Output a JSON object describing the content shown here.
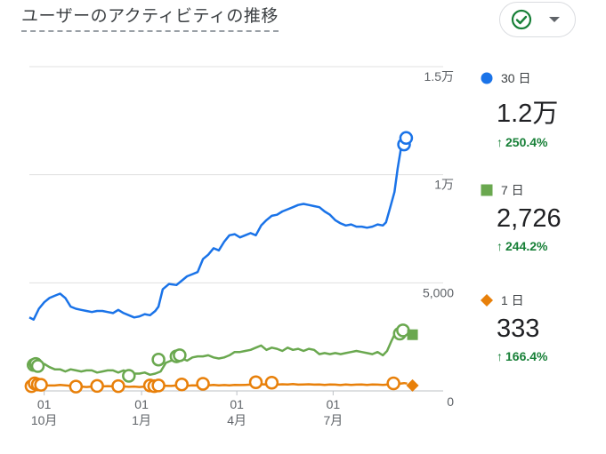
{
  "title": "ユーザーのアクティビティの推移",
  "status_icon": "check-circle-icon",
  "dropdown_icon": "caret-down-icon",
  "colors": {
    "day30": "#1a73e8",
    "day7": "#6aa84f",
    "day1": "#e8800a",
    "up": "#188038"
  },
  "legend": [
    {
      "marker": "circle",
      "label": "30 日",
      "value": "1.2万",
      "delta": "250.4%",
      "trend": "up"
    },
    {
      "marker": "square",
      "label": "7 日",
      "value": "2,726",
      "delta": "244.2%",
      "trend": "up"
    },
    {
      "marker": "diamond",
      "label": "1 日",
      "value": "333",
      "delta": "166.4%",
      "trend": "up"
    }
  ],
  "chart_data": {
    "type": "line",
    "y_ticks": [
      {
        "value": 15000,
        "label": "1.5万"
      },
      {
        "value": 10000,
        "label": "1万"
      },
      {
        "value": 5000,
        "label": "5,000"
      },
      {
        "value": 0,
        "label": "0"
      }
    ],
    "ylim": [
      0,
      15000
    ],
    "x_ticks": [
      {
        "day": 0,
        "top": "01",
        "bottom": "10月"
      },
      {
        "day": 92,
        "top": "01",
        "bottom": "1月"
      },
      {
        "day": 182,
        "top": "01",
        "bottom": "4月"
      },
      {
        "day": 273,
        "top": "01",
        "bottom": "7月"
      }
    ],
    "xlim": [
      -14,
      345
    ],
    "grid": true,
    "legend_position": "right",
    "series": [
      {
        "name": "30 日",
        "points": [
          [
            -14,
            3400
          ],
          [
            -10,
            3300
          ],
          [
            -5,
            3800
          ],
          [
            0,
            4100
          ],
          [
            5,
            4300
          ],
          [
            10,
            4400
          ],
          [
            15,
            4500
          ],
          [
            20,
            4300
          ],
          [
            25,
            3900
          ],
          [
            30,
            3800
          ],
          [
            35,
            3750
          ],
          [
            40,
            3700
          ],
          [
            45,
            3650
          ],
          [
            50,
            3700
          ],
          [
            55,
            3700
          ],
          [
            60,
            3650
          ],
          [
            65,
            3600
          ],
          [
            70,
            3750
          ],
          [
            75,
            3600
          ],
          [
            80,
            3500
          ],
          [
            85,
            3400
          ],
          [
            90,
            3450
          ],
          [
            95,
            3550
          ],
          [
            100,
            3500
          ],
          [
            105,
            3700
          ],
          [
            108,
            3900
          ],
          [
            112,
            4700
          ],
          [
            118,
            4950
          ],
          [
            125,
            4900
          ],
          [
            130,
            5100
          ],
          [
            135,
            5300
          ],
          [
            140,
            5400
          ],
          [
            145,
            5500
          ],
          [
            150,
            6100
          ],
          [
            155,
            6300
          ],
          [
            160,
            6600
          ],
          [
            165,
            6500
          ],
          [
            170,
            6900
          ],
          [
            175,
            7200
          ],
          [
            180,
            7250
          ],
          [
            185,
            7100
          ],
          [
            190,
            7200
          ],
          [
            195,
            7300
          ],
          [
            200,
            7200
          ],
          [
            205,
            7650
          ],
          [
            210,
            7900
          ],
          [
            215,
            8100
          ],
          [
            220,
            8150
          ],
          [
            225,
            8300
          ],
          [
            230,
            8400
          ],
          [
            235,
            8500
          ],
          [
            240,
            8600
          ],
          [
            245,
            8650
          ],
          [
            250,
            8600
          ],
          [
            255,
            8550
          ],
          [
            260,
            8500
          ],
          [
            265,
            8300
          ],
          [
            270,
            8150
          ],
          [
            275,
            7900
          ],
          [
            280,
            7750
          ],
          [
            285,
            7650
          ],
          [
            290,
            7700
          ],
          [
            295,
            7600
          ],
          [
            300,
            7600
          ],
          [
            305,
            7550
          ],
          [
            310,
            7600
          ],
          [
            315,
            7700
          ],
          [
            320,
            7650
          ],
          [
            323,
            7800
          ],
          [
            327,
            8500
          ],
          [
            331,
            9200
          ],
          [
            334,
            10300
          ],
          [
            337,
            11200
          ],
          [
            340,
            11500
          ],
          [
            343,
            11700
          ]
        ]
      },
      {
        "name": "7 日",
        "points": [
          [
            -14,
            1050
          ],
          [
            -10,
            1050
          ],
          [
            -5,
            1150
          ],
          [
            0,
            1250
          ],
          [
            5,
            1100
          ],
          [
            10,
            1000
          ],
          [
            15,
            1000
          ],
          [
            20,
            900
          ],
          [
            25,
            1000
          ],
          [
            30,
            950
          ],
          [
            35,
            900
          ],
          [
            40,
            950
          ],
          [
            45,
            950
          ],
          [
            50,
            850
          ],
          [
            55,
            900
          ],
          [
            60,
            950
          ],
          [
            65,
            950
          ],
          [
            70,
            850
          ],
          [
            75,
            950
          ],
          [
            80,
            850
          ],
          [
            85,
            800
          ],
          [
            90,
            800
          ],
          [
            95,
            850
          ],
          [
            100,
            750
          ],
          [
            105,
            800
          ],
          [
            110,
            900
          ],
          [
            115,
            1300
          ],
          [
            120,
            1400
          ],
          [
            125,
            1400
          ],
          [
            130,
            1500
          ],
          [
            135,
            1400
          ],
          [
            140,
            1550
          ],
          [
            145,
            1600
          ],
          [
            150,
            1600
          ],
          [
            155,
            1650
          ],
          [
            160,
            1550
          ],
          [
            165,
            1500
          ],
          [
            170,
            1550
          ],
          [
            175,
            1650
          ],
          [
            180,
            1800
          ],
          [
            185,
            1800
          ],
          [
            190,
            1850
          ],
          [
            195,
            1900
          ],
          [
            200,
            2000
          ],
          [
            205,
            2100
          ],
          [
            210,
            1900
          ],
          [
            215,
            2000
          ],
          [
            220,
            1950
          ],
          [
            225,
            1850
          ],
          [
            230,
            2000
          ],
          [
            235,
            1900
          ],
          [
            240,
            1950
          ],
          [
            245,
            1850
          ],
          [
            250,
            1950
          ],
          [
            255,
            1900
          ],
          [
            260,
            1700
          ],
          [
            265,
            1750
          ],
          [
            270,
            1700
          ],
          [
            275,
            1750
          ],
          [
            280,
            1700
          ],
          [
            285,
            1750
          ],
          [
            290,
            1800
          ],
          [
            295,
            1850
          ],
          [
            300,
            1800
          ],
          [
            305,
            1750
          ],
          [
            310,
            1700
          ],
          [
            315,
            1800
          ],
          [
            320,
            1650
          ],
          [
            324,
            1850
          ],
          [
            328,
            2300
          ],
          [
            332,
            2700
          ],
          [
            336,
            2700
          ],
          [
            340,
            2800
          ],
          [
            343,
            2750
          ]
        ]
      },
      {
        "name": "1 日",
        "points": [
          [
            -14,
            200
          ],
          [
            -10,
            250
          ],
          [
            -5,
            300
          ],
          [
            0,
            250
          ],
          [
            5,
            250
          ],
          [
            10,
            250
          ],
          [
            15,
            280
          ],
          [
            20,
            260
          ],
          [
            25,
            240
          ],
          [
            30,
            220
          ],
          [
            35,
            200
          ],
          [
            40,
            180
          ],
          [
            45,
            200
          ],
          [
            50,
            220
          ],
          [
            55,
            210
          ],
          [
            60,
            220
          ],
          [
            65,
            210
          ],
          [
            70,
            200
          ],
          [
            75,
            210
          ],
          [
            80,
            190
          ],
          [
            85,
            200
          ],
          [
            90,
            180
          ],
          [
            95,
            200
          ],
          [
            100,
            210
          ],
          [
            105,
            220
          ],
          [
            110,
            250
          ],
          [
            115,
            240
          ],
          [
            120,
            230
          ],
          [
            125,
            250
          ],
          [
            130,
            230
          ],
          [
            135,
            240
          ],
          [
            140,
            260
          ],
          [
            145,
            250
          ],
          [
            150,
            270
          ],
          [
            155,
            260
          ],
          [
            160,
            280
          ],
          [
            165,
            260
          ],
          [
            170,
            270
          ],
          [
            175,
            260
          ],
          [
            180,
            280
          ],
          [
            185,
            270
          ],
          [
            190,
            280
          ],
          [
            195,
            290
          ],
          [
            200,
            300
          ],
          [
            205,
            310
          ],
          [
            210,
            300
          ],
          [
            215,
            320
          ],
          [
            220,
            290
          ],
          [
            225,
            310
          ],
          [
            230,
            300
          ],
          [
            235,
            320
          ],
          [
            240,
            290
          ],
          [
            245,
            300
          ],
          [
            250,
            310
          ],
          [
            255,
            290
          ],
          [
            260,
            300
          ],
          [
            265,
            280
          ],
          [
            270,
            300
          ],
          [
            275,
            290
          ],
          [
            280,
            270
          ],
          [
            285,
            300
          ],
          [
            290,
            280
          ],
          [
            295,
            290
          ],
          [
            300,
            300
          ],
          [
            305,
            280
          ],
          [
            310,
            300
          ],
          [
            315,
            290
          ],
          [
            320,
            280
          ],
          [
            325,
            300
          ],
          [
            330,
            320
          ],
          [
            335,
            330
          ],
          [
            340,
            360
          ],
          [
            343,
            340
          ]
        ]
      }
    ],
    "markers": {
      "30 日": [
        [
          340,
          11400
        ],
        [
          342,
          11700
        ]
      ],
      "7 日": [
        [
          -10,
          1200
        ],
        [
          -8,
          1250
        ],
        [
          -6,
          1150
        ],
        [
          80,
          700
        ],
        [
          108,
          1450
        ],
        [
          125,
          1600
        ],
        [
          128,
          1650
        ],
        [
          336,
          2650
        ],
        [
          339,
          2800
        ]
      ],
      "1 日": [
        [
          -12,
          220
        ],
        [
          -9,
          350
        ],
        [
          -6,
          300
        ],
        [
          -3,
          280
        ],
        [
          30,
          200
        ],
        [
          50,
          230
        ],
        [
          70,
          220
        ],
        [
          100,
          250
        ],
        [
          104,
          220
        ],
        [
          108,
          250
        ],
        [
          130,
          300
        ],
        [
          150,
          330
        ],
        [
          200,
          400
        ],
        [
          215,
          380
        ],
        [
          330,
          350
        ]
      ]
    },
    "end_markers": {
      "7 日": [
        348,
        2600
      ],
      "1 日": [
        348,
        250
      ]
    }
  }
}
